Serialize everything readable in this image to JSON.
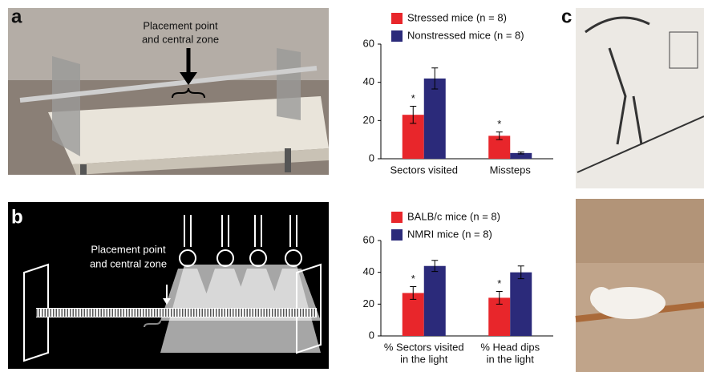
{
  "panels": {
    "a": {
      "label": "a",
      "annotation": [
        "Placement point",
        "and central zone"
      ]
    },
    "b": {
      "label": "b",
      "annotation": [
        "Placement point",
        "and central zone"
      ]
    },
    "c": {
      "label": "c"
    }
  },
  "chart_data": [
    {
      "type": "bar",
      "categories": [
        [
          "Sectors visited"
        ],
        [
          "Missteps"
        ]
      ],
      "series": [
        {
          "name": "Stressed mice (n = 8)",
          "color": "#e8262b",
          "values": [
            23,
            12
          ],
          "errors": [
            4.5,
            2
          ],
          "markers": [
            "*",
            "*"
          ]
        },
        {
          "name": "Nonstressed mice (n = 8)",
          "color": "#2b2a7a",
          "values": [
            42,
            3
          ],
          "errors": [
            5.5,
            0.5
          ]
        }
      ],
      "ylim": [
        0,
        60
      ],
      "yticks": [
        0,
        20,
        40,
        60
      ]
    },
    {
      "type": "bar",
      "categories": [
        [
          "% Sectors visited",
          "in the light"
        ],
        [
          "% Head dips",
          "in the light"
        ]
      ],
      "series": [
        {
          "name": "BALB/c mice (n = 8)",
          "color": "#e8262b",
          "values": [
            27,
            24
          ],
          "errors": [
            4,
            4
          ],
          "markers": [
            "*",
            "*"
          ]
        },
        {
          "name": "NMRI mice (n = 8)",
          "color": "#2b2a7a",
          "values": [
            44,
            40
          ],
          "errors": [
            3.5,
            4
          ]
        }
      ],
      "ylim": [
        0,
        60
      ],
      "yticks": [
        0,
        20,
        40,
        60
      ]
    }
  ]
}
